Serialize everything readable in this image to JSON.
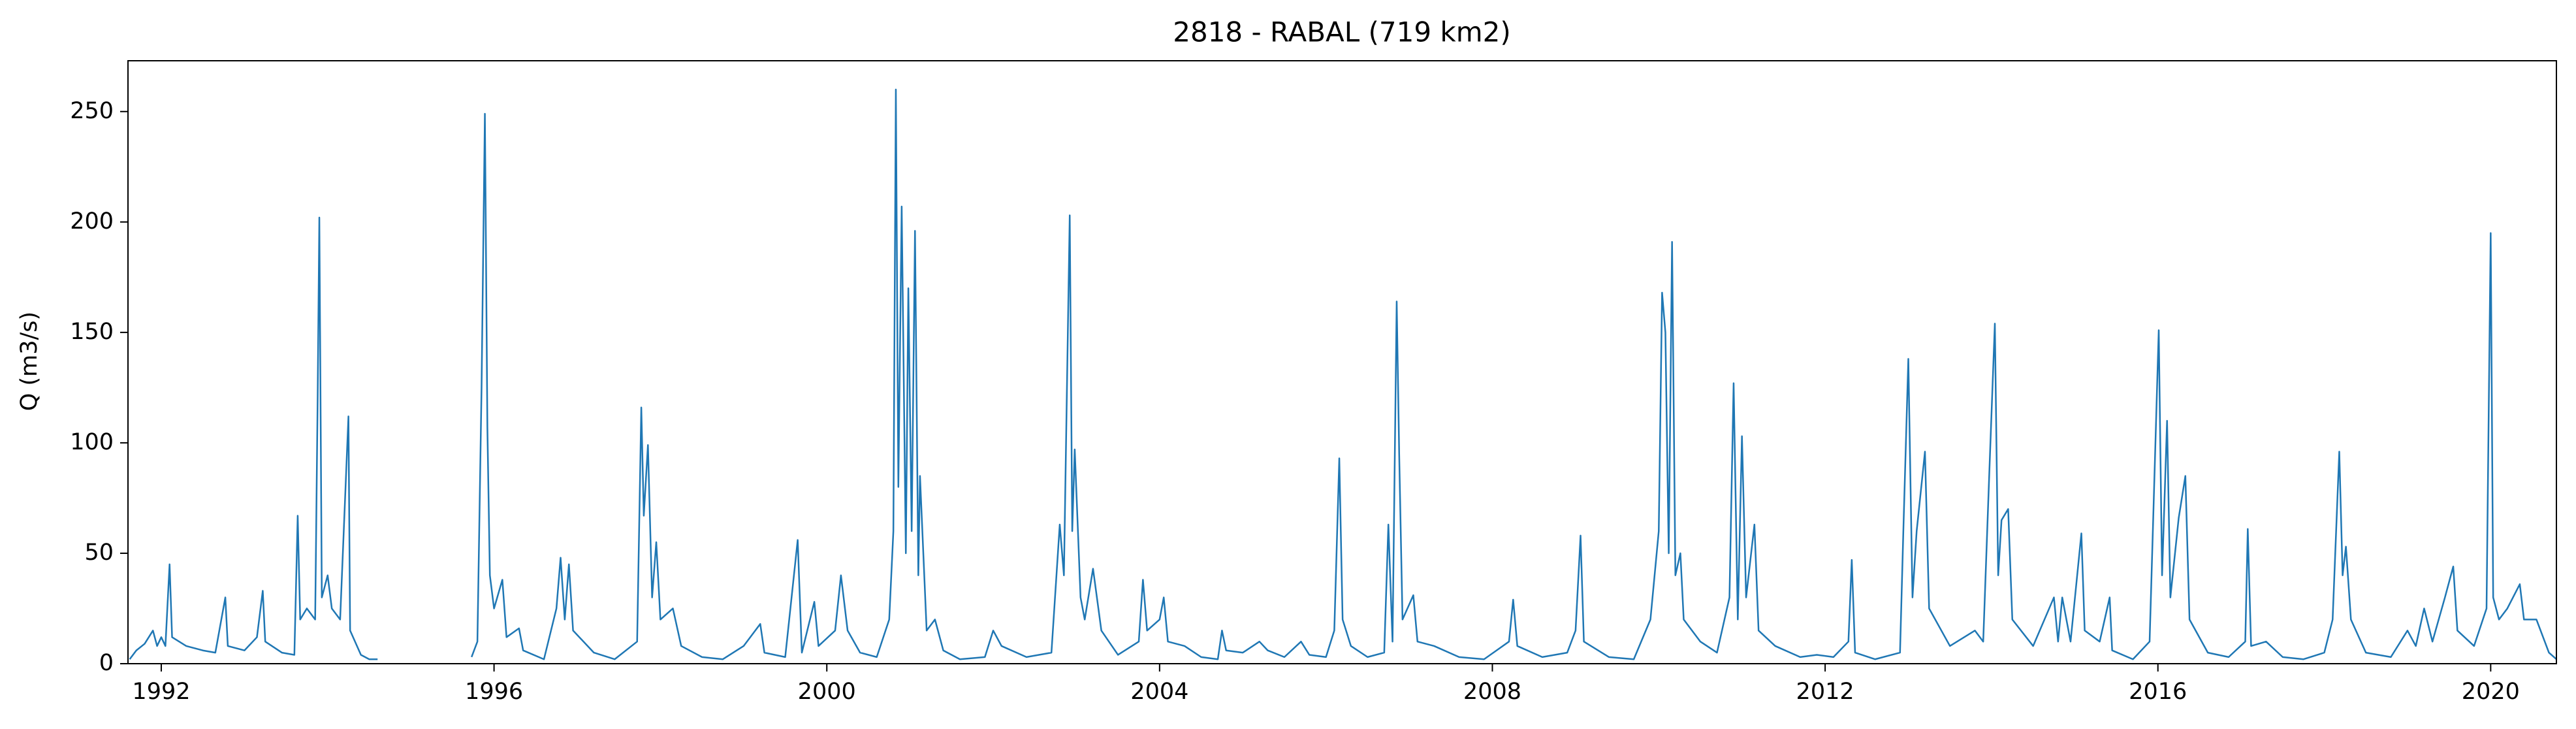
{
  "chart_data": {
    "type": "line",
    "title": "2818 - RABAL (719 km2)",
    "y_label": "Q (m3/s)",
    "color": "#1f77b4",
    "xlim": [
      1991.6,
      2020.79
    ],
    "ylim": [
      0,
      273
    ],
    "xticks": [
      1992,
      1996,
      2000,
      2004,
      2008,
      2012,
      2016,
      2020
    ],
    "yticks": [
      0,
      50,
      100,
      150,
      200,
      250
    ],
    "x": [
      1991.62,
      1991.7,
      1991.8,
      1991.9,
      1991.95,
      1992.0,
      1992.05,
      1992.1,
      1992.13,
      1992.3,
      1992.5,
      1992.65,
      1992.77,
      1992.8,
      1993.0,
      1993.15,
      1993.22,
      1993.25,
      1993.45,
      1993.6,
      1993.64,
      1993.67,
      1993.75,
      1993.85,
      1993.88,
      1993.9,
      1993.93,
      1994.0,
      1994.05,
      1994.15,
      1994.25,
      1994.27,
      1994.4,
      1994.5,
      1994.6,
      1995.2,
      1995.73,
      1995.8,
      1995.85,
      1995.89,
      1995.92,
      1995.95,
      1996.0,
      1996.1,
      1996.15,
      1996.3,
      1996.35,
      1996.6,
      1996.75,
      1996.8,
      1996.85,
      1996.9,
      1996.95,
      1997.2,
      1997.45,
      1997.72,
      1997.77,
      1997.8,
      1997.85,
      1997.9,
      1997.95,
      1998.0,
      1998.15,
      1998.25,
      1998.5,
      1998.75,
      1999.0,
      1999.2,
      1999.25,
      1999.5,
      1999.65,
      1999.7,
      1999.85,
      1999.9,
      2000.1,
      2000.17,
      2000.25,
      2000.4,
      2000.6,
      2000.75,
      2000.8,
      2000.83,
      2000.86,
      2000.9,
      2000.95,
      2000.98,
      2001.02,
      2001.06,
      2001.1,
      2001.12,
      2001.2,
      2001.3,
      2001.4,
      2001.6,
      2001.9,
      2002.0,
      2002.1,
      2002.4,
      2002.7,
      2002.8,
      2002.85,
      2002.92,
      2002.95,
      2002.98,
      2003.05,
      2003.1,
      2003.2,
      2003.3,
      2003.5,
      2003.75,
      2003.8,
      2003.85,
      2004.0,
      2004.05,
      2004.1,
      2004.3,
      2004.5,
      2004.7,
      2004.75,
      2004.8,
      2005.0,
      2005.2,
      2005.3,
      2005.5,
      2005.7,
      2005.8,
      2006.0,
      2006.1,
      2006.16,
      2006.2,
      2006.3,
      2006.5,
      2006.7,
      2006.75,
      2006.8,
      2006.85,
      2006.88,
      2006.92,
      2007.05,
      2007.1,
      2007.3,
      2007.6,
      2007.9,
      2008.2,
      2008.25,
      2008.3,
      2008.6,
      2008.9,
      2009.0,
      2009.06,
      2009.1,
      2009.4,
      2009.7,
      2009.9,
      2010.0,
      2010.04,
      2010.08,
      2010.12,
      2010.16,
      2010.2,
      2010.26,
      2010.3,
      2010.5,
      2010.7,
      2010.85,
      2010.9,
      2010.95,
      2011.0,
      2011.05,
      2011.15,
      2011.2,
      2011.4,
      2011.7,
      2011.9,
      2012.1,
      2012.28,
      2012.32,
      2012.36,
      2012.6,
      2012.9,
      2012.94,
      2013.0,
      2013.05,
      2013.1,
      2013.2,
      2013.25,
      2013.5,
      2013.8,
      2013.9,
      2013.97,
      2014.04,
      2014.08,
      2014.12,
      2014.2,
      2014.25,
      2014.5,
      2014.75,
      2014.8,
      2014.85,
      2014.95,
      2015.08,
      2015.12,
      2015.3,
      2015.42,
      2015.45,
      2015.7,
      2015.9,
      2016.01,
      2016.05,
      2016.11,
      2016.15,
      2016.25,
      2016.33,
      2016.38,
      2016.6,
      2016.85,
      2017.05,
      2017.08,
      2017.12,
      2017.3,
      2017.5,
      2017.75,
      2018.0,
      2018.1,
      2018.18,
      2018.22,
      2018.26,
      2018.32,
      2018.5,
      2018.8,
      2019.0,
      2019.1,
      2019.2,
      2019.3,
      2019.45,
      2019.55,
      2019.6,
      2019.8,
      2019.95,
      2020.0,
      2020.03,
      2020.1,
      2020.2,
      2020.35,
      2020.4,
      2020.55,
      2020.7,
      2020.79
    ],
    "values": [
      2,
      6,
      9,
      15,
      8,
      12,
      8,
      45,
      12,
      8,
      6,
      5,
      30,
      8,
      6,
      12,
      33,
      10,
      5,
      4,
      67,
      20,
      25,
      20,
      121,
      202,
      30,
      40,
      25,
      20,
      112,
      15,
      4,
      2,
      2,
      null,
      3,
      10,
      125,
      249,
      107,
      40,
      25,
      38,
      12,
      16,
      6,
      2,
      25,
      48,
      20,
      45,
      15,
      5,
      2,
      10,
      116,
      67,
      99,
      30,
      55,
      20,
      25,
      8,
      3,
      2,
      8,
      18,
      5,
      3,
      56,
      5,
      28,
      8,
      15,
      40,
      15,
      5,
      3,
      20,
      60,
      260,
      80,
      207,
      50,
      170,
      60,
      196,
      40,
      85,
      15,
      20,
      6,
      2,
      3,
      15,
      8,
      3,
      5,
      63,
      40,
      203,
      60,
      97,
      30,
      20,
      43,
      15,
      4,
      10,
      38,
      15,
      20,
      30,
      10,
      8,
      3,
      2,
      15,
      6,
      5,
      10,
      6,
      3,
      10,
      4,
      3,
      15,
      93,
      20,
      8,
      3,
      5,
      63,
      10,
      164,
      95,
      20,
      31,
      10,
      8,
      3,
      2,
      10,
      29,
      8,
      3,
      5,
      15,
      58,
      10,
      3,
      2,
      20,
      60,
      168,
      150,
      50,
      191,
      40,
      50,
      20,
      10,
      5,
      30,
      127,
      20,
      103,
      30,
      63,
      15,
      8,
      3,
      4,
      3,
      10,
      47,
      5,
      2,
      5,
      60,
      138,
      30,
      60,
      96,
      25,
      8,
      15,
      10,
      83,
      154,
      40,
      65,
      70,
      20,
      8,
      30,
      10,
      30,
      10,
      59,
      15,
      10,
      30,
      6,
      2,
      10,
      151,
      40,
      110,
      30,
      66,
      85,
      20,
      5,
      3,
      10,
      61,
      8,
      10,
      3,
      2,
      5,
      20,
      96,
      40,
      53,
      20,
      5,
      3,
      15,
      8,
      25,
      10,
      30,
      44,
      15,
      8,
      25,
      195,
      30,
      20,
      25,
      36,
      20,
      20,
      5,
      2
    ]
  }
}
